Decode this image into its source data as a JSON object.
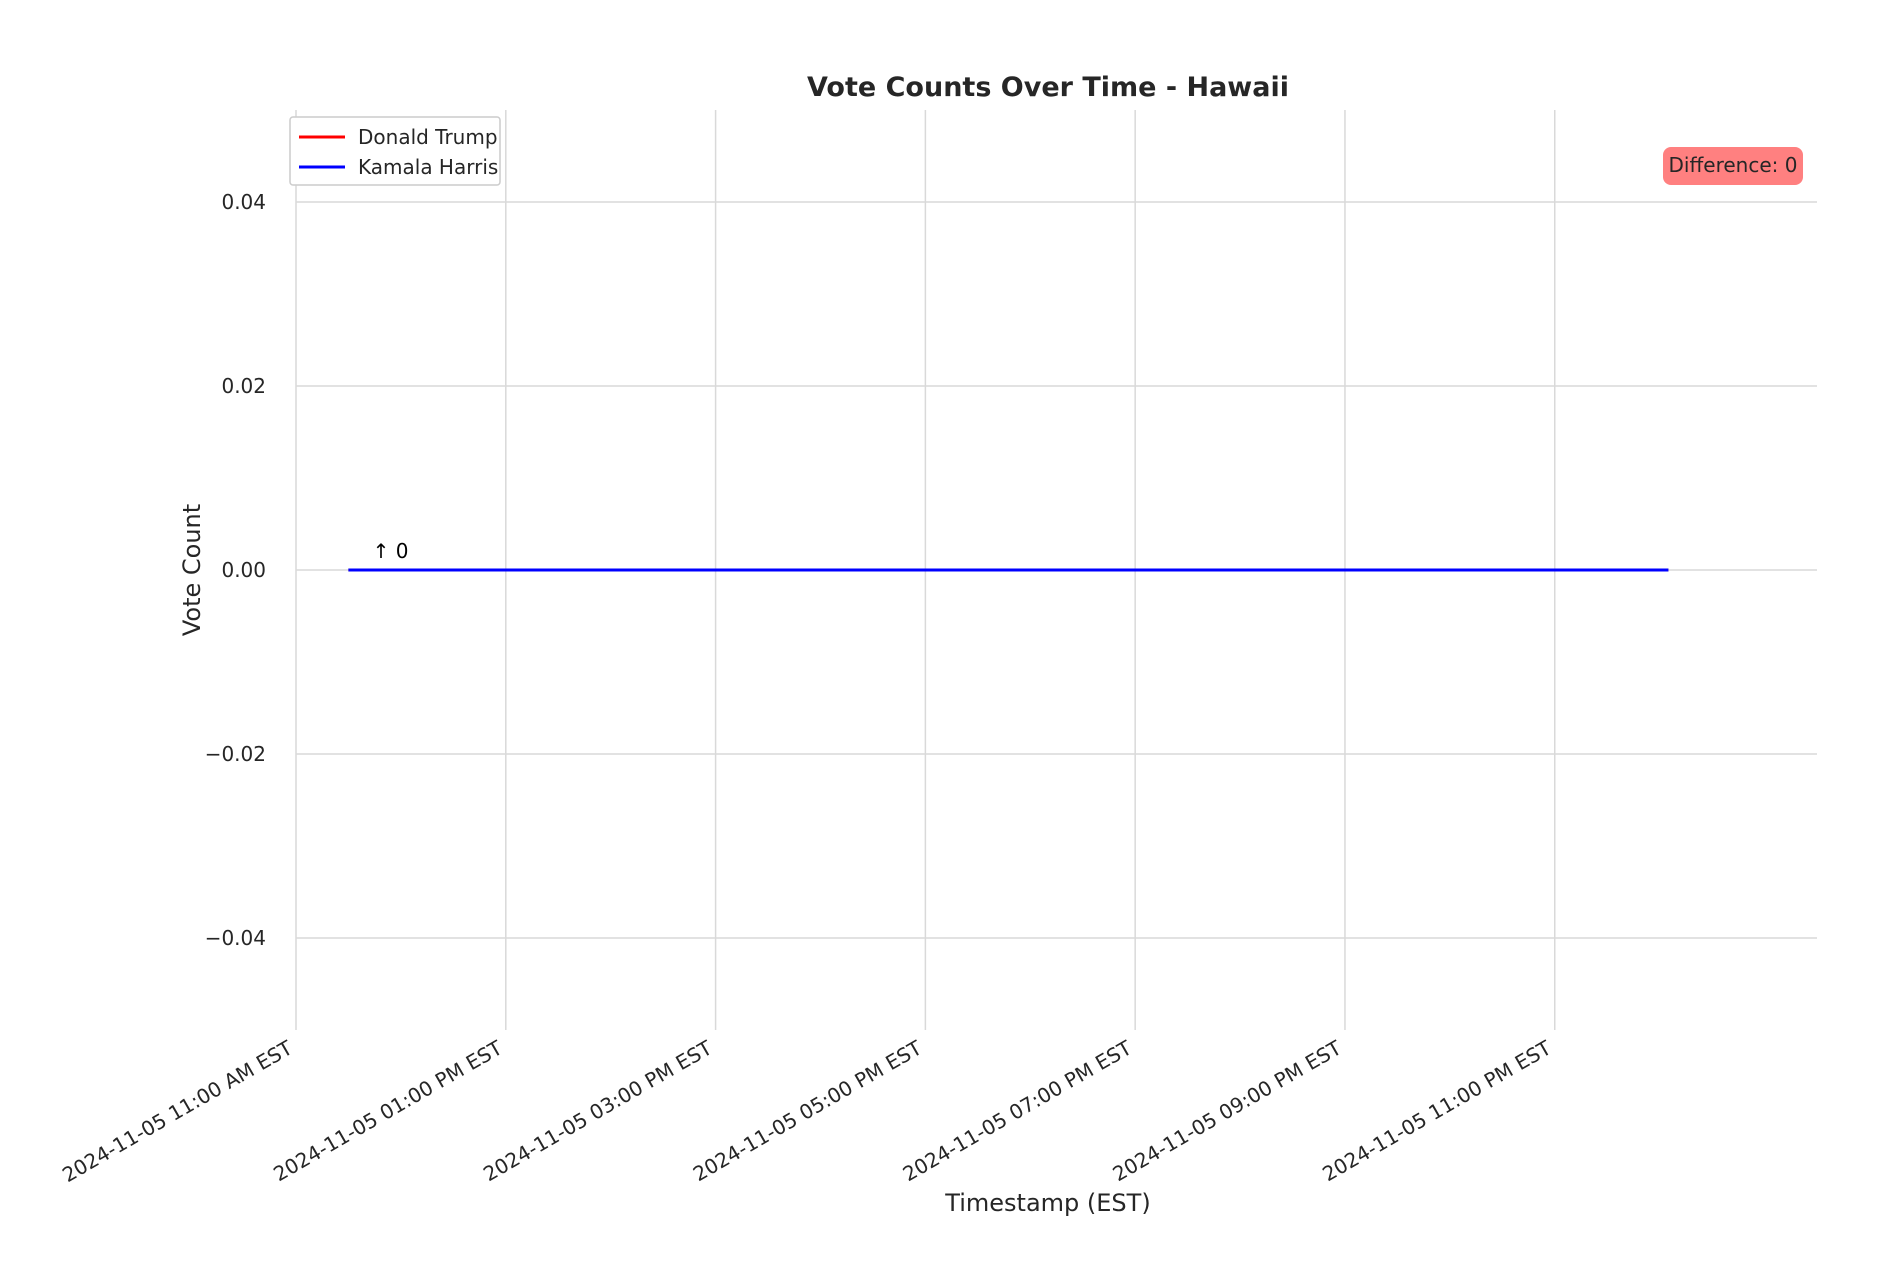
{
  "chart_data": {
    "type": "line",
    "title": "Vote Counts Over Time - Hawaii",
    "xlabel": "Timestamp (EST)",
    "ylabel": "Vote Count",
    "ylim": [
      -0.05,
      0.05
    ],
    "yticks": [
      0.04,
      0.02,
      0.0,
      -0.02,
      -0.04
    ],
    "ytick_labels": [
      "0.04",
      "0.02",
      "0.00",
      "−0.02",
      "−0.04"
    ],
    "xlim": [
      "2024-11-05 11:00",
      "2024-11-06 01:30"
    ],
    "xticks": [
      {
        "t": "2024-11-05 11:00",
        "label": "2024-11-05 11:00 AM EST"
      },
      {
        "t": "2024-11-05 13:00",
        "label": "2024-11-05 01:00 PM EST"
      },
      {
        "t": "2024-11-05 15:00",
        "label": "2024-11-05 03:00 PM EST"
      },
      {
        "t": "2024-11-05 17:00",
        "label": "2024-11-05 05:00 PM EST"
      },
      {
        "t": "2024-11-05 19:00",
        "label": "2024-11-05 07:00 PM EST"
      },
      {
        "t": "2024-11-05 21:00",
        "label": "2024-11-05 09:00 PM EST"
      },
      {
        "t": "2024-11-05 23:00",
        "label": "2024-11-05 11:00 PM EST"
      }
    ],
    "grid": true,
    "legend_position": "top-left",
    "series": [
      {
        "name": "Donald Trump",
        "color": "#ff0000",
        "x": [
          "2024-11-05 11:30",
          "2024-11-06 00:05"
        ],
        "y": [
          0,
          0
        ]
      },
      {
        "name": "Kamala Harris",
        "color": "#0000ff",
        "x": [
          "2024-11-05 11:30",
          "2024-11-06 00:05"
        ],
        "y": [
          0,
          0
        ]
      }
    ],
    "annotations": [
      {
        "text": "↑ 0",
        "x": "2024-11-05 11:45",
        "y": 0
      }
    ],
    "difference_box": {
      "text": "Difference: 0",
      "background": "#ff8080",
      "position": "top-right"
    }
  }
}
